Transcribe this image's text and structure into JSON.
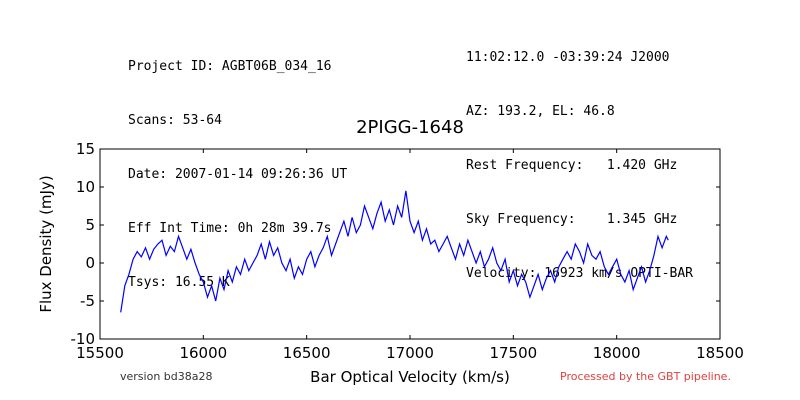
{
  "header_left": [
    "Project ID: AGBT06B_034_16",
    "Scans: 53-64",
    "Date: 2007-01-14 09:26:36 UT",
    "Eff Int Time: 0h 28m 39.7s",
    "Tsys: 16.55 K"
  ],
  "header_right": [
    "11:02:12.0 -03:39:24 J2000",
    "AZ: 193.2, EL: 46.8",
    "Rest Frequency:   1.420 GHz",
    "Sky Frequency:    1.345 GHz",
    "Velocity: 16923 km/s OPTI-BAR"
  ],
  "footer": {
    "version": "version bd38a28",
    "pipeline": "Processed by the GBT pipeline."
  },
  "chart_data": {
    "type": "line",
    "title": "2PIGG-1648",
    "xlabel": "Bar Optical Velocity (km/s)",
    "ylabel": "Flux Density (mJy)",
    "xlim": [
      15500,
      18500
    ],
    "ylim": [
      -10,
      15
    ],
    "xticks": [
      15500,
      16000,
      16500,
      17000,
      17500,
      18000,
      18500
    ],
    "yticks": [
      -10,
      -5,
      0,
      5,
      10,
      15
    ],
    "grid": false,
    "line_color": "#0000ff",
    "series": [
      {
        "x": [
          15600,
          15620,
          15640,
          15660,
          15680,
          15700,
          15720,
          15740,
          15760,
          15780,
          15800,
          15820,
          15840,
          15860,
          15880,
          15900,
          15920,
          15940,
          15960,
          15980,
          16000,
          16020,
          16040,
          16060,
          16080,
          16100,
          16120,
          16140,
          16160,
          16180,
          16200,
          16220,
          16240,
          16260,
          16280,
          16300,
          16320,
          16340,
          16360,
          16380,
          16400,
          16420,
          16440,
          16460,
          16480,
          16500,
          16520,
          16540,
          16560,
          16580,
          16600,
          16620,
          16640,
          16660,
          16680,
          16700,
          16720,
          16740,
          16760,
          16780,
          16800,
          16820,
          16840,
          16860,
          16880,
          16900,
          16920,
          16940,
          16960,
          16980,
          17000,
          17020,
          17040,
          17060,
          17080,
          17100,
          17120,
          17140,
          17160,
          17180,
          17200,
          17220,
          17240,
          17260,
          17280,
          17300,
          17320,
          17340,
          17360,
          17380,
          17400,
          17420,
          17440,
          17460,
          17480,
          17500,
          17520,
          17540,
          17560,
          17580,
          17600,
          17620,
          17640,
          17660,
          17680,
          17700,
          17720,
          17740,
          17760,
          17780,
          17800,
          17820,
          17840,
          17860,
          17880,
          17900,
          17920,
          17940,
          17960,
          17980,
          18000,
          18020,
          18040,
          18060,
          18080,
          18100,
          18120,
          18140,
          18160,
          18180,
          18200,
          18220,
          18240,
          18250
        ],
        "y": [
          -6.5,
          -3.0,
          -1.5,
          0.5,
          1.5,
          0.8,
          2.0,
          0.5,
          1.8,
          2.5,
          3.0,
          1.0,
          2.2,
          1.5,
          3.5,
          2.0,
          0.5,
          1.8,
          0.0,
          -1.5,
          -2.5,
          -4.5,
          -3.0,
          -5.0,
          -2.0,
          -3.5,
          -1.0,
          -2.5,
          -0.5,
          -1.5,
          0.5,
          -1.0,
          0.0,
          1.0,
          2.5,
          0.5,
          2.8,
          1.0,
          2.0,
          0.0,
          -1.0,
          0.5,
          -2.0,
          -0.5,
          -1.5,
          0.5,
          1.5,
          -0.5,
          1.0,
          2.0,
          3.5,
          1.0,
          2.5,
          4.0,
          5.5,
          3.5,
          6.0,
          4.0,
          5.0,
          7.5,
          6.0,
          4.5,
          6.5,
          8.0,
          5.5,
          7.0,
          5.0,
          7.5,
          6.0,
          9.5,
          5.5,
          4.0,
          5.5,
          3.0,
          4.5,
          2.5,
          3.0,
          1.5,
          2.5,
          3.5,
          2.0,
          0.5,
          2.5,
          1.0,
          3.0,
          1.5,
          0.0,
          1.5,
          -0.5,
          0.5,
          2.0,
          0.0,
          -1.0,
          0.5,
          -2.5,
          -1.0,
          -3.0,
          -1.5,
          -2.5,
          -4.5,
          -3.0,
          -1.5,
          -3.5,
          -2.0,
          -1.0,
          -2.5,
          -0.5,
          0.5,
          1.5,
          0.5,
          2.5,
          1.5,
          0.0,
          2.5,
          1.0,
          0.5,
          1.5,
          -0.5,
          -1.5,
          -0.5,
          0.5,
          -1.5,
          -2.5,
          -1.0,
          -3.5,
          -2.0,
          -0.5,
          -2.5,
          -1.0,
          1.0,
          3.5,
          2.0,
          3.5,
          3.0
        ]
      }
    ]
  }
}
